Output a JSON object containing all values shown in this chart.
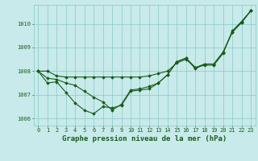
{
  "title": "Graphe pression niveau de la mer (hPa)",
  "background_color": "#c8eaea",
  "grid_color": "#88c8c8",
  "line_color": "#1a5c1a",
  "hours": [
    0,
    1,
    2,
    3,
    4,
    5,
    6,
    7,
    8,
    9,
    10,
    11,
    12,
    13,
    14,
    15,
    16,
    17,
    18,
    19,
    20,
    21,
    22,
    23
  ],
  "series": [
    [
      1008.0,
      1008.0,
      1007.8,
      1007.75,
      1007.75,
      1007.75,
      1007.75,
      1007.75,
      1007.75,
      1007.75,
      1007.75,
      1007.75,
      1007.8,
      1007.9,
      1008.0,
      1008.35,
      1008.5,
      1008.15,
      1008.25,
      1008.25,
      1008.75,
      1009.7,
      1010.1,
      1010.55
    ],
    [
      1008.0,
      1007.7,
      1007.65,
      1007.5,
      1007.4,
      1007.15,
      1006.9,
      1006.7,
      1006.35,
      1006.6,
      1007.2,
      1007.25,
      1007.35,
      1007.5,
      1007.85,
      1008.4,
      1008.55,
      1008.15,
      1008.3,
      1008.3,
      1008.8,
      1009.65,
      1010.05,
      1010.55
    ],
    [
      1008.0,
      1007.5,
      1007.55,
      1007.1,
      1006.65,
      1006.35,
      1006.2,
      1006.5,
      1006.45,
      1006.55,
      1007.15,
      1007.2,
      1007.25,
      1007.5,
      1007.85,
      1008.4,
      1008.55,
      1008.1,
      1008.3,
      1008.3,
      1008.8,
      1009.65,
      1010.05,
      1010.55
    ]
  ],
  "ylim_min": 1005.7,
  "ylim_max": 1010.8,
  "yticks": [
    1006,
    1007,
    1008,
    1009,
    1010
  ],
  "xticks": [
    0,
    1,
    2,
    3,
    4,
    5,
    6,
    7,
    8,
    9,
    10,
    11,
    12,
    13,
    14,
    15,
    16,
    17,
    18,
    19,
    20,
    21,
    22,
    23
  ],
  "marker": "D",
  "markersize": 1.8,
  "linewidth": 0.8,
  "title_fontsize": 6.5,
  "tick_fontsize": 5.0,
  "fig_width": 3.2,
  "fig_height": 2.0,
  "dpi": 100
}
